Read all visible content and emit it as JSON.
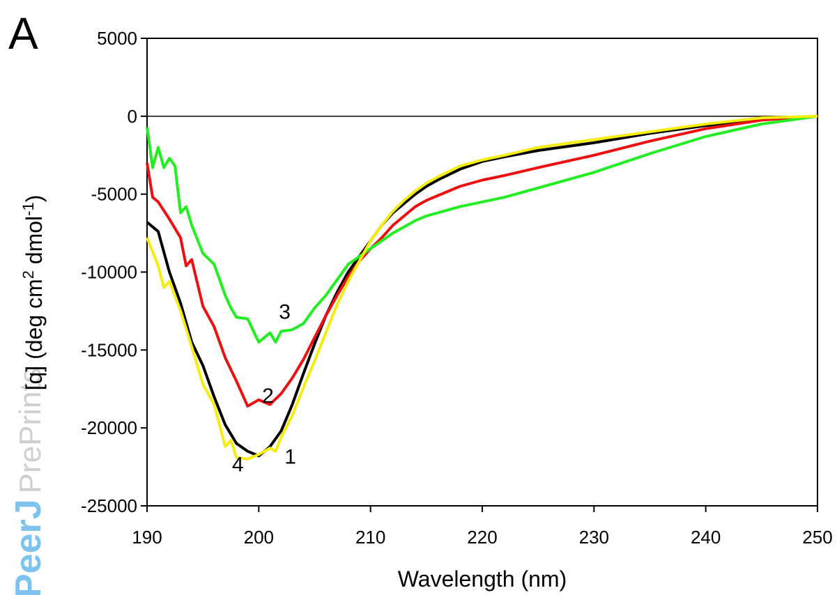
{
  "panel_label": "A",
  "watermark": {
    "brand": "PeerJ",
    "suffix": "PrePrints"
  },
  "chart_data": {
    "type": "line",
    "xlabel": "Wavelength (nm)",
    "ylabel_prefix": "[q] (deg cm",
    "ylabel_sup1": "2",
    "ylabel_mid": " dmol",
    "ylabel_sup2": "-1",
    "ylabel_suffix": ")",
    "xlim": [
      190,
      250
    ],
    "ylim": [
      -25000,
      5000
    ],
    "x_ticks": [
      190,
      200,
      210,
      220,
      230,
      240,
      250
    ],
    "y_ticks": [
      5000,
      0,
      -5000,
      -10000,
      -15000,
      -20000,
      -25000
    ],
    "zero_line": true,
    "grid": false,
    "legend": "none",
    "series": [
      {
        "label": "1",
        "color": "#000000",
        "x": [
          190,
          191,
          192,
          193,
          194,
          195,
          196,
          197,
          198,
          199,
          200,
          201,
          202,
          203,
          204,
          205,
          206,
          207,
          208,
          209,
          210,
          211,
          212,
          213,
          214,
          215,
          216,
          218,
          220,
          222,
          225,
          230,
          235,
          240,
          245,
          250
        ],
        "y": [
          -6800,
          -7400,
          -10000,
          -12000,
          -14500,
          -16000,
          -18000,
          -19800,
          -21000,
          -21500,
          -21800,
          -21200,
          -20200,
          -18500,
          -16500,
          -14600,
          -12800,
          -11300,
          -10000,
          -9000,
          -8000,
          -7000,
          -6200,
          -5600,
          -5000,
          -4500,
          -4100,
          -3400,
          -2900,
          -2600,
          -2200,
          -1700,
          -1100,
          -600,
          -200,
          0
        ]
      },
      {
        "label": "2",
        "color": "#ee1010",
        "x": [
          190,
          190.5,
          191,
          192,
          193,
          193.5,
          194,
          195,
          196,
          197,
          198,
          199,
          200,
          201,
          202,
          203,
          204,
          205,
          206,
          207,
          208,
          209,
          210,
          211,
          212,
          213,
          214,
          215,
          216,
          218,
          220,
          222,
          225,
          230,
          235,
          240,
          245,
          250
        ],
        "y": [
          -3000,
          -5200,
          -5500,
          -6600,
          -7800,
          -9600,
          -9200,
          -12200,
          -13500,
          -15500,
          -17000,
          -18600,
          -18200,
          -18500,
          -17800,
          -16800,
          -15600,
          -14200,
          -12800,
          -11500,
          -10300,
          -9300,
          -8500,
          -7800,
          -7000,
          -6400,
          -5800,
          -5400,
          -5100,
          -4500,
          -4100,
          -3800,
          -3300,
          -2500,
          -1600,
          -800,
          -250,
          0
        ]
      },
      {
        "label": "3",
        "color": "#22ee22",
        "x": [
          190,
          190.5,
          191,
          191.5,
          192,
          192.5,
          193,
          193.5,
          194,
          195,
          196,
          197,
          197.5,
          198,
          199,
          200,
          201,
          201.5,
          202,
          203,
          204,
          205,
          206,
          207,
          208,
          209,
          210,
          211,
          212,
          213,
          214,
          215,
          216,
          218,
          220,
          222,
          225,
          230,
          235,
          240,
          245,
          250
        ],
        "y": [
          -700,
          -3300,
          -2000,
          -3300,
          -2700,
          -3200,
          -6200,
          -5800,
          -7000,
          -8800,
          -9500,
          -11500,
          -12300,
          -12900,
          -13000,
          -14500,
          -13900,
          -14500,
          -13800,
          -13700,
          -13300,
          -12300,
          -11500,
          -10500,
          -9500,
          -9000,
          -8500,
          -8000,
          -7500,
          -7100,
          -6700,
          -6400,
          -6200,
          -5800,
          -5500,
          -5200,
          -4600,
          -3600,
          -2400,
          -1300,
          -500,
          0
        ]
      },
      {
        "label": "4",
        "color": "#f5ec10",
        "x": [
          190,
          191,
          191.5,
          192,
          193,
          194,
          195,
          196,
          197,
          197.5,
          198,
          199,
          200,
          201,
          201.5,
          202,
          203,
          204,
          205,
          206,
          207,
          208,
          209,
          210,
          211,
          212,
          213,
          214,
          215,
          216,
          218,
          220,
          222,
          225,
          230,
          235,
          240,
          245,
          250
        ],
        "y": [
          -7800,
          -9600,
          -11000,
          -10600,
          -12500,
          -14800,
          -17200,
          -18500,
          -21200,
          -20800,
          -21900,
          -22000,
          -21700,
          -21300,
          -21500,
          -20600,
          -19200,
          -17400,
          -15700,
          -13900,
          -12100,
          -10600,
          -9300,
          -8000,
          -7000,
          -6100,
          -5400,
          -4800,
          -4300,
          -3900,
          -3200,
          -2800,
          -2500,
          -2000,
          -1500,
          -1000,
          -500,
          -100,
          0
        ]
      }
    ]
  }
}
